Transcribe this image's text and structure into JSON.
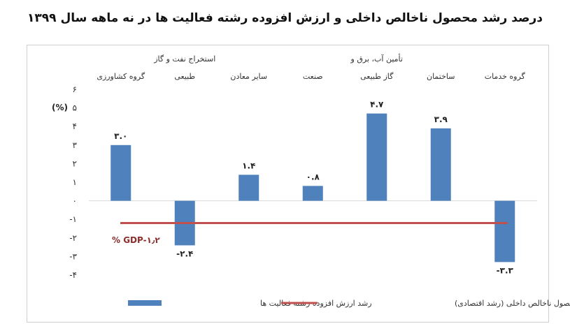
{
  "chart_data": {
    "type": "bar",
    "title": "درصد رشد محصول ناخالص داخلی و ارزش افزوده رشته فعالیت ها در نه ماهه سال ۱۳۹۹",
    "ylabel": "(%)",
    "ylim": [
      -4,
      6
    ],
    "yticks": [
      "۶",
      "۵",
      "۴",
      "۳",
      "۲",
      "۱",
      "۰",
      "-۱",
      "-۲",
      "-۳",
      "-۴"
    ],
    "categories": [
      [
        "گروه کشاورزی"
      ],
      [
        "استخراج نفت و گاز",
        "طبیعی"
      ],
      [
        "سایر معادن"
      ],
      [
        "صنعت"
      ],
      [
        "تأمین آب، برق و",
        "گاز طبیعی"
      ],
      [
        "ساختمان"
      ],
      [
        "گروه خدمات"
      ]
    ],
    "series": [
      {
        "name": "رشد ارزش افزوده رشته فعالیت ها",
        "type": "bar",
        "color": "#4f81bd",
        "values": [
          3.0,
          -2.4,
          1.4,
          0.8,
          4.7,
          3.9,
          -3.3
        ],
        "labels": [
          "۳.۰",
          "-۲.۴",
          "۱.۴",
          "۰.۸",
          "۴.۷",
          "۳.۹",
          "-۳.۳"
        ]
      },
      {
        "name": "رشد محصول ناخالص داخلی (رشد اقتصادی)",
        "type": "line",
        "color": "#c0504d",
        "value": -1.2
      }
    ],
    "gdp_annotation": "% GDP-۱٫۲",
    "legend_position": "bottom",
    "grid": false
  }
}
